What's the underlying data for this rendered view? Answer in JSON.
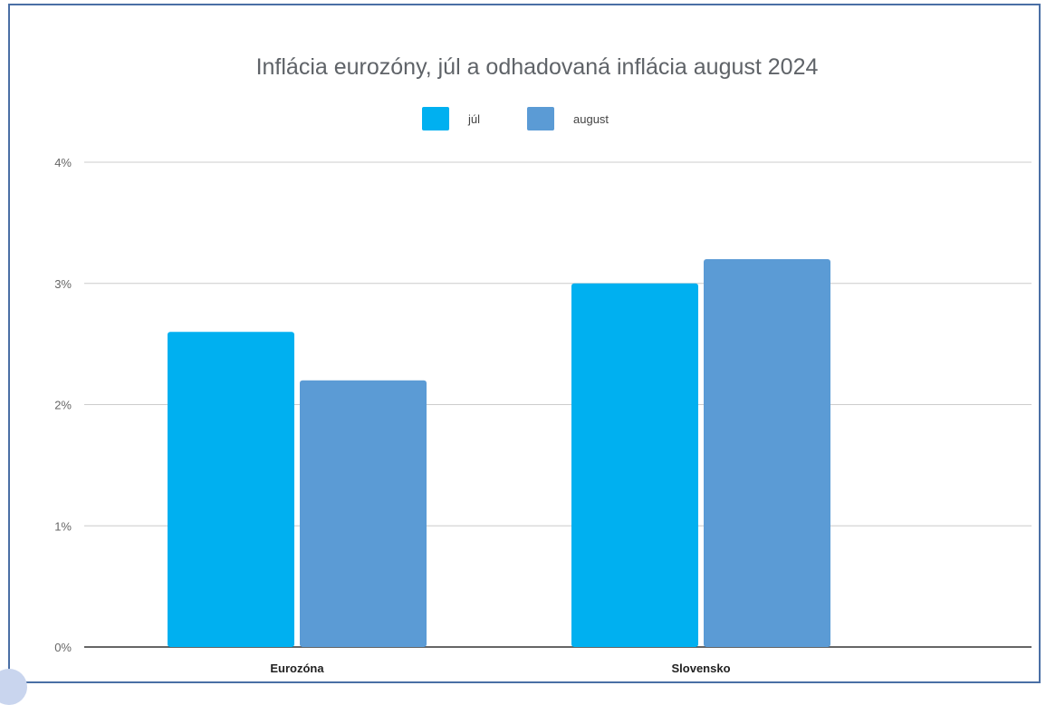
{
  "chart_data": {
    "type": "bar",
    "title": "Inflácia eurozóny, júl a odhadovaná inflácia august 2024",
    "xlabel": "",
    "ylabel": "",
    "categories": [
      "Eurozóna",
      "Slovensko"
    ],
    "series": [
      {
        "name": "júl",
        "values": [
          2.6,
          3.0
        ],
        "color": "#00b0f0"
      },
      {
        "name": "august",
        "values": [
          2.2,
          3.2
        ],
        "color": "#5b9bd5"
      }
    ],
    "ylim": [
      0,
      4
    ],
    "yticks": [
      0,
      1,
      2,
      3,
      4
    ],
    "ytick_labels": [
      "0%",
      "1%",
      "2%",
      "3%",
      "4%"
    ],
    "grid": true,
    "legend_position": "top-center"
  }
}
